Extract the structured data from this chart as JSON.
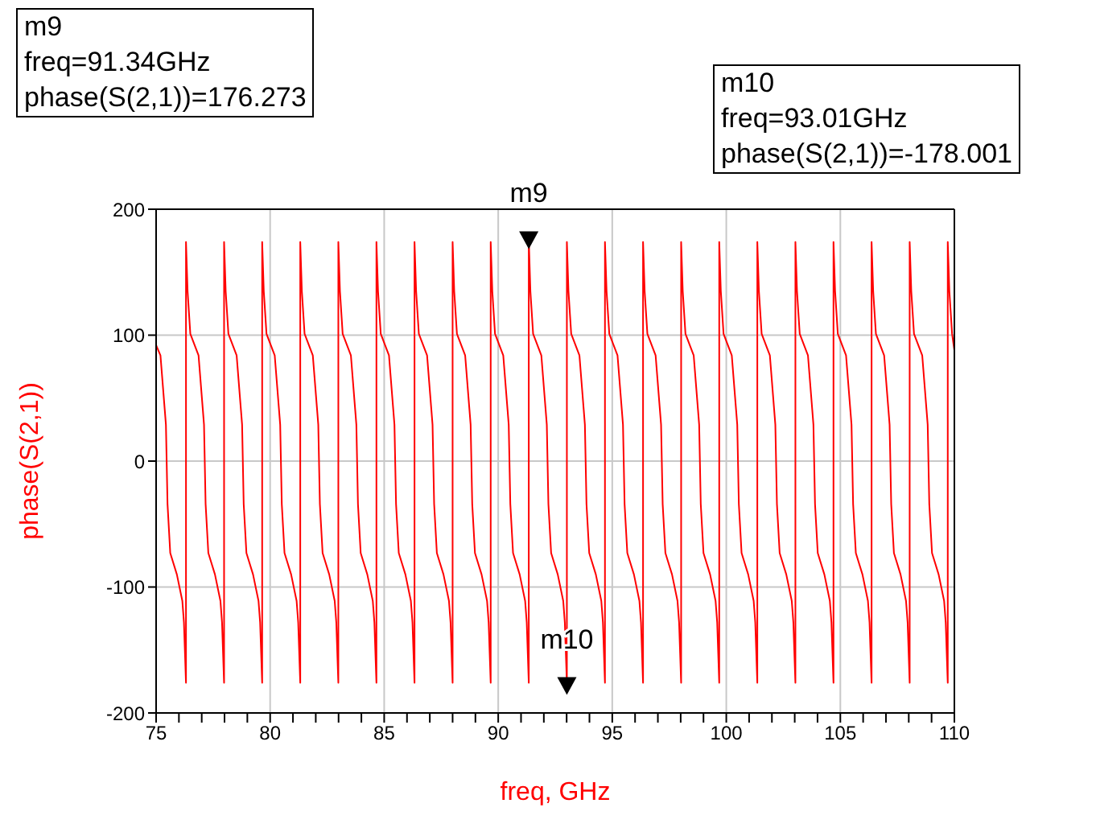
{
  "chart_data": {
    "type": "line",
    "xlabel": "freq, GHz",
    "ylabel": "phase(S(2,1))",
    "xlim": [
      75,
      110
    ],
    "ylim": [
      -200,
      200
    ],
    "xticks": [
      75,
      {
        "value": 76,
        "label": null
      },
      {
        "value": 77,
        "label": null
      },
      {
        "value": 78,
        "label": null
      },
      {
        "value": 79,
        "label": null
      },
      80,
      {
        "value": 81,
        "label": null
      },
      {
        "value": 82,
        "label": null
      },
      {
        "value": 83,
        "label": null
      },
      {
        "value": 84,
        "label": null
      },
      85,
      {
        "value": 86,
        "label": null
      },
      {
        "value": 87,
        "label": null
      },
      {
        "value": 88,
        "label": null
      },
      {
        "value": 89,
        "label": null
      },
      90,
      {
        "value": 91,
        "label": null
      },
      {
        "value": 92,
        "label": null
      },
      {
        "value": 93,
        "label": null
      },
      {
        "value": 94,
        "label": null
      },
      95,
      {
        "value": 96,
        "label": null
      },
      {
        "value": 97,
        "label": null
      },
      {
        "value": 98,
        "label": null
      },
      {
        "value": 99,
        "label": null
      },
      100,
      {
        "value": 101,
        "label": null
      },
      {
        "value": 102,
        "label": null
      },
      {
        "value": 103,
        "label": null
      },
      {
        "value": 104,
        "label": null
      },
      105,
      {
        "value": 106,
        "label": null
      },
      {
        "value": 107,
        "label": null
      },
      {
        "value": 108,
        "label": null
      },
      {
        "value": 109,
        "label": null
      },
      110
    ],
    "yticks": [
      -200,
      -100,
      0,
      100,
      200
    ],
    "grid": true,
    "annotations": [
      {
        "text": "m9",
        "x": 91.34,
        "y": 176.273
      },
      {
        "text": "m10",
        "x": 93.01,
        "y": -178.001
      },
      "m9\nfreq=91.34GHz\nphase(S(2,1))=176.273",
      "m10\nfreq=93.01GHz\nphase(S(2,1))=-178.001"
    ],
    "series": [
      {
        "color": "#ff0000",
        "x": [
          75,
          75.19,
          75.43,
          75.5,
          75.62,
          75.91,
          76.15,
          76.22,
          76.3,
          76.31,
          76.31,
          76.38,
          76.5,
          76.86,
          77.1,
          77.17,
          77.29,
          77.58,
          77.82,
          77.89,
          77.97,
          77.98,
          77.98,
          78.05,
          78.17,
          78.53,
          78.77,
          78.84,
          78.96,
          79.25,
          79.49,
          79.56,
          79.64,
          79.65,
          79.65,
          79.72,
          79.84,
          80.2,
          80.44,
          80.51,
          80.63,
          80.92,
          81.16,
          81.23,
          81.31,
          81.32,
          81.32,
          81.39,
          81.51,
          81.87,
          82.11,
          82.18,
          82.3,
          82.59,
          82.83,
          82.9,
          82.98,
          82.99,
          82.99,
          83.06,
          83.18,
          83.54,
          83.78,
          83.85,
          83.97,
          84.26,
          84.5,
          84.57,
          84.65,
          84.66,
          84.66,
          84.73,
          84.85,
          85.21,
          85.45,
          85.52,
          85.64,
          85.93,
          86.17,
          86.24,
          86.32,
          86.33,
          86.33,
          86.4,
          86.52,
          86.88,
          87.12,
          87.19,
          87.31,
          87.6,
          87.84,
          87.91,
          87.99,
          88.0,
          88.0,
          88.07,
          88.19,
          88.55,
          88.79,
          88.86,
          88.98,
          89.27,
          89.51,
          89.58,
          89.66,
          89.67,
          89.67,
          89.74,
          89.86,
          90.22,
          90.46,
          90.53,
          90.65,
          90.94,
          91.18,
          91.25,
          91.33,
          91.34,
          91.34,
          91.41,
          91.53,
          91.89,
          92.13,
          92.2,
          92.32,
          92.61,
          92.85,
          92.92,
          93.0,
          93.01,
          93.01,
          93.08,
          93.2,
          93.56,
          93.8,
          93.87,
          93.99,
          94.28,
          94.52,
          94.59,
          94.67,
          94.68,
          94.68,
          94.75,
          94.87,
          95.23,
          95.47,
          95.54,
          95.66,
          95.95,
          96.19,
          96.26,
          96.34,
          96.35,
          96.35,
          96.42,
          96.54,
          96.9,
          97.14,
          97.21,
          97.33,
          97.62,
          97.86,
          97.93,
          98.01,
          98.02,
          98.02,
          98.09,
          98.21,
          98.57,
          98.81,
          98.88,
          99.0,
          99.29,
          99.53,
          99.6,
          99.68,
          99.69,
          99.69,
          99.76,
          99.88,
          100.24,
          100.48,
          100.55,
          100.67,
          100.96,
          101.2,
          101.27,
          101.35,
          101.36,
          101.36,
          101.43,
          101.55,
          101.91,
          102.15,
          102.22,
          102.34,
          102.63,
          102.87,
          102.94,
          103.02,
          103.03,
          103.03,
          103.1,
          103.22,
          103.58,
          103.82,
          103.89,
          104.01,
          104.3,
          104.54,
          104.61,
          104.69,
          104.7,
          104.7,
          104.77,
          104.89,
          105.25,
          105.49,
          105.56,
          105.68,
          105.97,
          106.21,
          106.28,
          106.36,
          106.37,
          106.37,
          106.44,
          106.56,
          106.92,
          107.16,
          107.23,
          107.35,
          107.64,
          107.88,
          107.95,
          108.03,
          108.04,
          108.04,
          108.11,
          108.23,
          108.59,
          108.83,
          108.9,
          109.02,
          109.31,
          109.55,
          109.62,
          109.7,
          109.71,
          109.71,
          109.78,
          109.9,
          110
        ],
        "values": [
          92,
          84,
          29,
          -34,
          -73,
          -90,
          -111,
          -128,
          -171,
          -176,
          174,
          135,
          101,
          84,
          29,
          -34,
          -73,
          -90,
          -111,
          -128,
          -171,
          -176,
          174,
          135,
          101,
          84,
          29,
          -34,
          -73,
          -90,
          -111,
          -128,
          -171,
          -176,
          174,
          135,
          101,
          84,
          29,
          -34,
          -73,
          -90,
          -111,
          -128,
          -171,
          -176,
          174,
          135,
          101,
          84,
          29,
          -34,
          -73,
          -90,
          -111,
          -128,
          -171,
          -176,
          174,
          135,
          101,
          84,
          29,
          -34,
          -73,
          -90,
          -111,
          -128,
          -171,
          -176,
          174,
          135,
          101,
          84,
          29,
          -34,
          -73,
          -90,
          -111,
          -128,
          -171,
          -176,
          174,
          135,
          101,
          84,
          29,
          -34,
          -73,
          -90,
          -111,
          -128,
          -171,
          -176,
          174,
          135,
          101,
          84,
          29,
          -34,
          -73,
          -90,
          -111,
          -128,
          -171,
          -176,
          174,
          135,
          101,
          84,
          29,
          -34,
          -73,
          -90,
          -111,
          -128,
          -171,
          -176,
          176,
          135,
          101,
          84,
          29,
          -34,
          -73,
          -90,
          -111,
          -128,
          -171,
          -178,
          174,
          135,
          101,
          84,
          29,
          -34,
          -73,
          -90,
          -111,
          -128,
          -171,
          -176,
          174,
          135,
          101,
          84,
          29,
          -34,
          -73,
          -90,
          -111,
          -128,
          -171,
          -176,
          174,
          135,
          101,
          84,
          29,
          -34,
          -73,
          -90,
          -111,
          -128,
          -171,
          -176,
          174,
          135,
          101,
          84,
          29,
          -34,
          -73,
          -90,
          -111,
          -128,
          -171,
          -176,
          174,
          135,
          101,
          84,
          29,
          -34,
          -73,
          -90,
          -111,
          -128,
          -171,
          -176,
          174,
          135,
          101,
          84,
          29,
          -34,
          -73,
          -90,
          -111,
          -128,
          -171,
          -176,
          174,
          135,
          101,
          84,
          29,
          -34,
          -73,
          -90,
          -111,
          -128,
          -171,
          -176,
          174,
          135,
          101,
          84,
          29,
          -34,
          -73,
          -90,
          -111,
          -128,
          -171,
          -176,
          174,
          135,
          101,
          84,
          29,
          -34,
          -73,
          -90,
          -111,
          -128,
          -171,
          -176,
          174,
          135,
          101,
          84,
          29,
          -34,
          -73,
          -90,
          -111,
          -128,
          -171,
          -176,
          174,
          135,
          101,
          88
        ]
      },
      {
        "type": "scatter",
        "marker": "triangle",
        "color": "#000000",
        "x": [
          91.34,
          93.01
        ],
        "values": [
          176,
          -178
        ]
      }
    ]
  }
}
